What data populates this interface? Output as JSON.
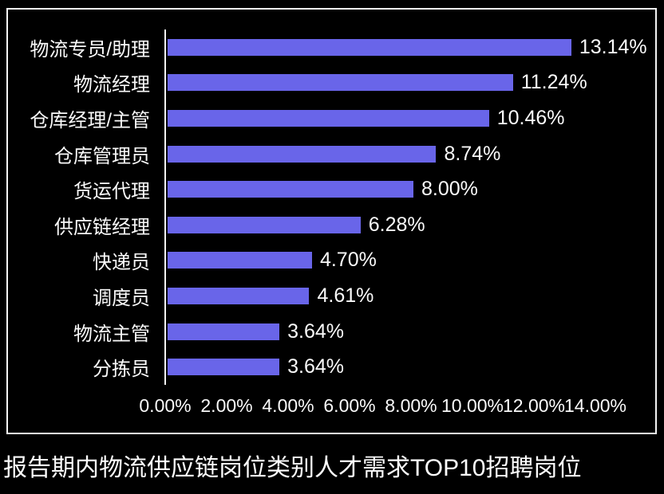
{
  "chart_data": {
    "type": "bar",
    "orientation": "horizontal",
    "title": "报告期内物流供应链岗位类别人才需求TOP10招聘岗位",
    "categories": [
      "物流专员/助理",
      "物流经理",
      "仓库经理/主管",
      "仓库管理员",
      "货运代理",
      "供应链经理",
      "快递员",
      "调度员",
      "物流主管",
      "分拣员"
    ],
    "values": [
      13.14,
      11.24,
      10.46,
      8.74,
      8.0,
      6.28,
      4.7,
      4.61,
      3.64,
      3.64
    ],
    "value_labels": [
      "13.14%",
      "11.24%",
      "10.46%",
      "8.74%",
      "8.00%",
      "6.28%",
      "4.70%",
      "4.61%",
      "3.64%",
      "3.64%"
    ],
    "x_ticks": [
      "0.00%",
      "2.00%",
      "4.00%",
      "6.00%",
      "8.00%",
      "10.00%",
      "12.00%",
      "14.00%"
    ],
    "xlim": [
      0,
      14
    ],
    "grid": "off",
    "legend": "none",
    "colors": {
      "bar": "#6965E9",
      "background": "#000000",
      "text": "#FAFAFA",
      "frame": "#F4F4F4"
    }
  }
}
